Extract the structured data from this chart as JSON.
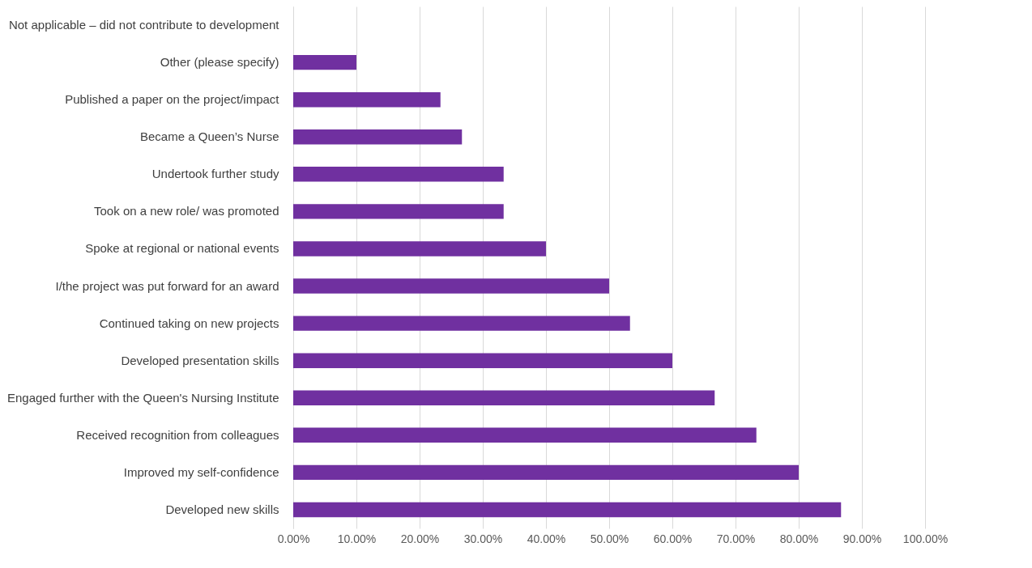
{
  "chart_data": {
    "type": "bar",
    "orientation": "horizontal",
    "categories": [
      "Not applicable – did not contribute to development",
      "Other (please specify)",
      "Published a paper on the project/impact",
      "Became a Queen’s Nurse",
      "Undertook further study",
      "Took on a new role/ was promoted",
      "Spoke at regional or national events",
      "I/the project was put forward for an award",
      "Continued taking on new projects",
      "Developed presentation skills",
      "Engaged further with the Queen's Nursing Institute",
      "Received recognition from colleagues",
      "Improved my self-confidence",
      "Developed new skills"
    ],
    "values": [
      0,
      10,
      23.3,
      26.7,
      33.3,
      33.3,
      40,
      50,
      53.3,
      60,
      66.7,
      73.3,
      80,
      86.7
    ],
    "color": "#7030a0",
    "xlim": [
      0,
      100
    ],
    "xticks": [
      {
        "value": 0,
        "label": "0.00%"
      },
      {
        "value": 10,
        "label": "10.00%"
      },
      {
        "value": 20,
        "label": "20.00%"
      },
      {
        "value": 30,
        "label": "30.00%"
      },
      {
        "value": 40,
        "label": "40.00%"
      },
      {
        "value": 50,
        "label": "50.00%"
      },
      {
        "value": 60,
        "label": "60.00%"
      },
      {
        "value": 70,
        "label": "70.00%"
      },
      {
        "value": 80,
        "label": "80.00%"
      },
      {
        "value": 90,
        "label": "90.00%"
      },
      {
        "value": 100,
        "label": "100.00%"
      }
    ],
    "grid": "x"
  }
}
